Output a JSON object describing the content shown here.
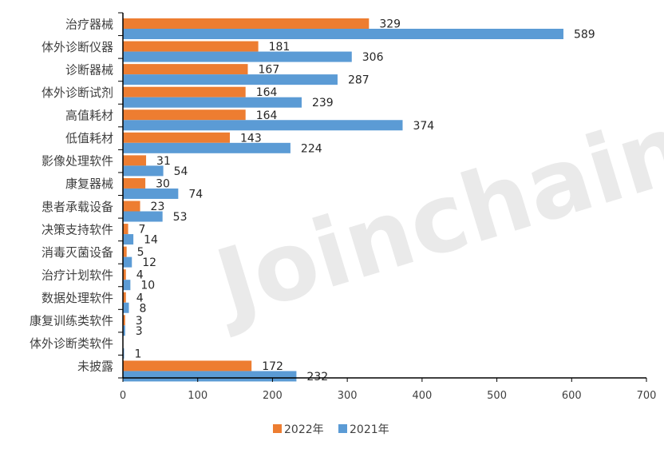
{
  "watermark": "Joinchain®",
  "chart_data": {
    "type": "bar",
    "orientation": "horizontal",
    "categories": [
      "治疗器械",
      "体外诊断仪器",
      "诊断器械",
      "体外诊断试剂",
      "高值耗材",
      "低值耗材",
      "影像处理软件",
      "康复器械",
      "患者承载设备",
      "决策支持软件",
      "消毒灭菌设备",
      "治疗计划软件",
      "数据处理软件",
      "康复训练类软件",
      "体外诊断类软件",
      "未披露"
    ],
    "series": [
      {
        "name": "2022年",
        "color": "#ED7D31",
        "values": [
          329,
          181,
          167,
          164,
          164,
          143,
          31,
          30,
          23,
          7,
          5,
          4,
          4,
          3,
          null,
          172
        ]
      },
      {
        "name": "2021年",
        "color": "#5B9BD5",
        "values": [
          589,
          306,
          287,
          239,
          374,
          224,
          54,
          74,
          53,
          14,
          12,
          10,
          8,
          3,
          1,
          232
        ]
      }
    ],
    "xlim": [
      0,
      700
    ],
    "xticks": [
      0,
      100,
      200,
      300,
      400,
      500,
      600,
      700
    ],
    "legend_position": "bottom",
    "grid": false
  }
}
